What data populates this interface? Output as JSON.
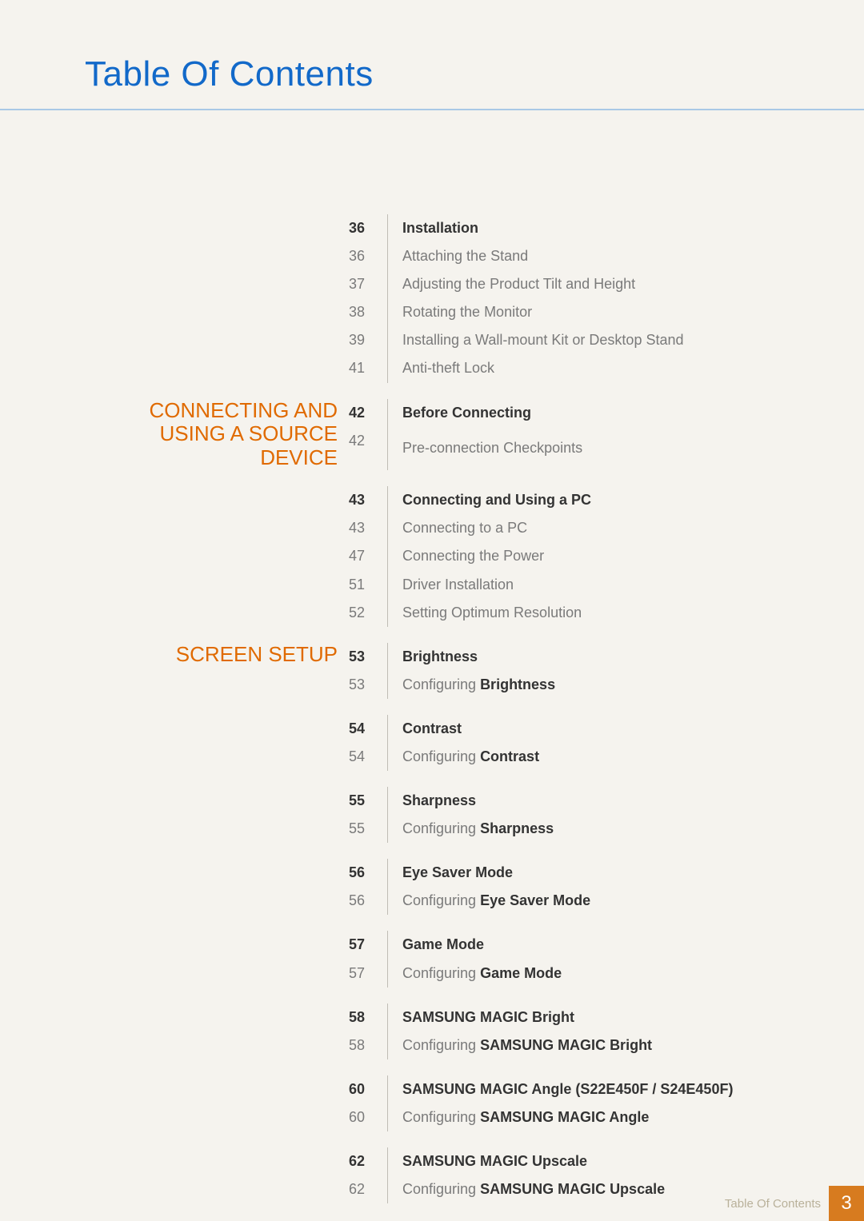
{
  "colors": {
    "title": "#1269c9",
    "section": "#e06a00",
    "body_gray": "#7a7a7a",
    "body_black": "#333333",
    "rule": "#a9c8e6",
    "footer_box": "#d77b1f",
    "footer_text": "#b9b19a",
    "background": "#f5f3ee"
  },
  "title": "Table Of Contents",
  "sections": [
    {
      "heading": null,
      "groups": [
        {
          "items": [
            {
              "page": "36",
              "text": "Installation",
              "bold": true
            },
            {
              "page": "36",
              "text": "Attaching the Stand",
              "bold": false
            },
            {
              "page": "37",
              "text": "Adjusting the Product Tilt and Height",
              "bold": false
            },
            {
              "page": "38",
              "text": "Rotating the Monitor",
              "bold": false
            },
            {
              "page": "39",
              "text": "Installing a Wall-mount Kit or Desktop Stand",
              "bold": false
            },
            {
              "page": "41",
              "text": "Anti-theft Lock",
              "bold": false
            }
          ]
        }
      ]
    },
    {
      "heading": "CONNECTING AND USING A SOURCE DEVICE",
      "groups": [
        {
          "items": [
            {
              "page": "42",
              "text": "Before Connecting",
              "bold": true
            },
            {
              "page": "42",
              "text": "Pre-connection Checkpoints",
              "bold": false
            }
          ]
        },
        {
          "items": [
            {
              "page": "43",
              "text": "Connecting and Using a PC",
              "bold": true
            },
            {
              "page": "43",
              "text": "Connecting to a PC",
              "bold": false
            },
            {
              "page": "47",
              "text": "Connecting the Power",
              "bold": false
            },
            {
              "page": "51",
              "text": "Driver Installation",
              "bold": false
            },
            {
              "page": "52",
              "text": "Setting Optimum Resolution",
              "bold": false
            }
          ]
        }
      ]
    },
    {
      "heading": "SCREEN SETUP",
      "groups": [
        {
          "items": [
            {
              "page": "53",
              "text": "Brightness",
              "bold": true
            },
            {
              "page": "53",
              "text_parts": [
                "Configuring ",
                "Brightness"
              ],
              "bold": false
            }
          ]
        },
        {
          "items": [
            {
              "page": "54",
              "text": "Contrast",
              "bold": true
            },
            {
              "page": "54",
              "text_parts": [
                "Configuring ",
                "Contrast"
              ],
              "bold": false
            }
          ]
        },
        {
          "items": [
            {
              "page": "55",
              "text": "Sharpness",
              "bold": true
            },
            {
              "page": "55",
              "text_parts": [
                "Configuring ",
                "Sharpness"
              ],
              "bold": false
            }
          ]
        },
        {
          "items": [
            {
              "page": "56",
              "text": "Eye Saver Mode",
              "bold": true
            },
            {
              "page": "56",
              "text_parts": [
                "Configuring ",
                "Eye Saver Mode"
              ],
              "bold": false
            }
          ]
        },
        {
          "items": [
            {
              "page": "57",
              "text": "Game Mode",
              "bold": true
            },
            {
              "page": "57",
              "text_parts": [
                "Configuring ",
                "Game Mode"
              ],
              "bold": false
            }
          ]
        },
        {
          "items": [
            {
              "page": "58",
              "text": "SAMSUNG MAGIC Bright",
              "bold": true
            },
            {
              "page": "58",
              "text_parts": [
                "Configuring ",
                "SAMSUNG MAGIC Bright"
              ],
              "bold": false
            }
          ]
        },
        {
          "items": [
            {
              "page": "60",
              "text": "SAMSUNG MAGIC Angle (S22E450F / S24E450F)",
              "bold": true
            },
            {
              "page": "60",
              "text_parts": [
                "Configuring ",
                "SAMSUNG MAGIC Angle"
              ],
              "bold": false
            }
          ]
        },
        {
          "items": [
            {
              "page": "62",
              "text": "SAMSUNG MAGIC Upscale",
              "bold": true
            },
            {
              "page": "62",
              "text_parts": [
                "Configuring ",
                "SAMSUNG MAGIC Upscale"
              ],
              "bold": false
            }
          ]
        }
      ]
    }
  ],
  "footer": {
    "label": "Table Of Contents",
    "page": "3"
  }
}
